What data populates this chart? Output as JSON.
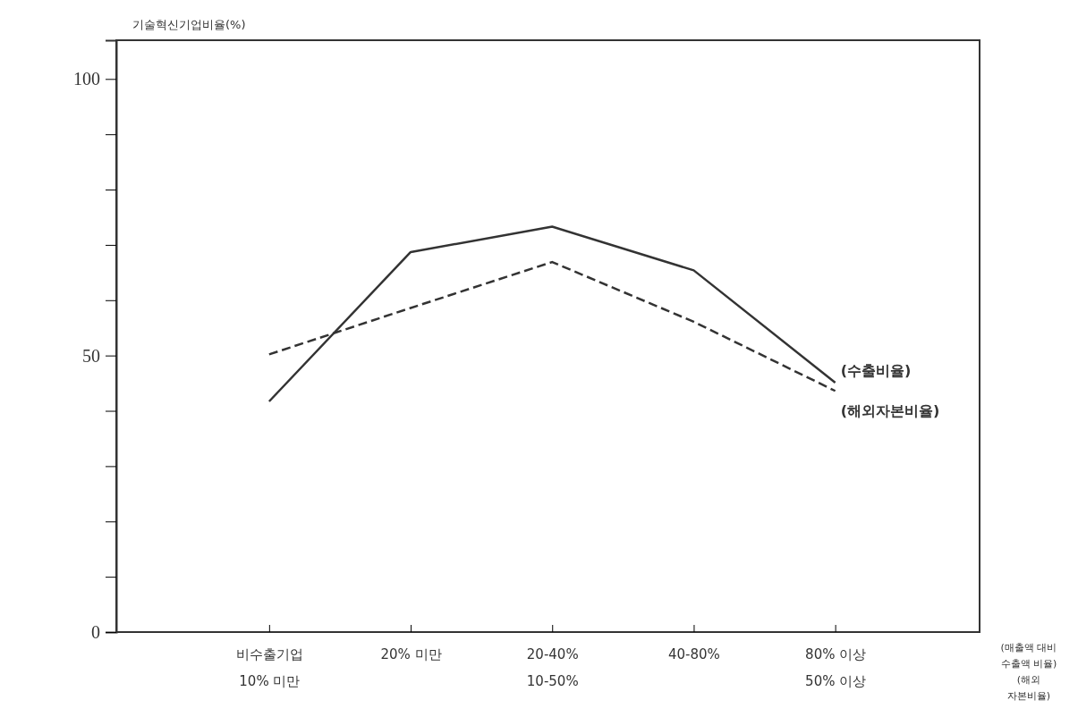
{
  "chart_data": {
    "type": "line",
    "ylabel": "기술혁신기업비율(%)",
    "xlabel": "(매출액 대비\n수출액 비율)\n(해외\n자본비율)",
    "categories": [
      "비수출기업\n10% 미만",
      "20% 미만",
      "20-40%\n10-50%",
      "40-80%",
      "80% 이상\n50% 이상"
    ],
    "series": [
      {
        "name": "(수출비율)",
        "color": "#333333",
        "line_style": "solid",
        "values": [
          41.7,
          68.7,
          73.3,
          65.4,
          45.1
        ]
      },
      {
        "name": "(해외자본비율)",
        "color": "#333333",
        "line_style": "dashed",
        "values": [
          50.2,
          58.6,
          66.9,
          56.1,
          43.6
        ]
      }
    ],
    "ylim": [
      0,
      107
    ],
    "yticks": [
      0,
      {
        "value": 10,
        "label": null
      },
      {
        "value": 20,
        "label": null
      },
      {
        "value": 30,
        "label": null
      },
      {
        "value": 40,
        "label": null
      },
      50,
      {
        "value": 60,
        "label": null
      },
      {
        "value": 70,
        "label": null
      },
      {
        "value": 80,
        "label": null
      },
      {
        "value": 90,
        "label": null
      },
      100
    ],
    "grid": false,
    "marker": "none"
  }
}
